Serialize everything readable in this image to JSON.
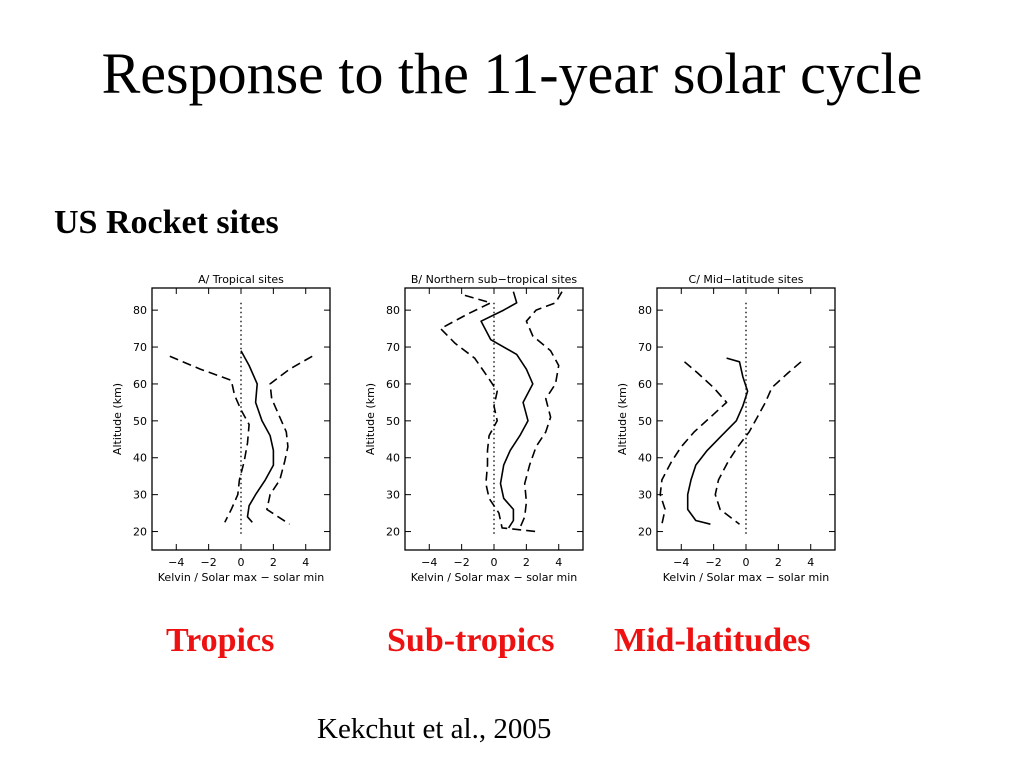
{
  "slide": {
    "title": "Response to the 11-year solar cycle",
    "subtitle": "US Rocket sites",
    "region_labels": [
      "Tropics",
      "Sub-tropics",
      "Mid-latitudes"
    ],
    "citation": "Kekchut et al., 2005",
    "label_color": "#ee1111"
  },
  "chart_data": [
    {
      "type": "line",
      "title": "A/ Tropical sites",
      "xlabel": "Kelvin / Solar max − solar min",
      "ylabel": "Altitude (km)",
      "xlim": [
        -5.5,
        5.5
      ],
      "ylim": [
        15,
        86
      ],
      "xticks": [
        -4,
        -2,
        0,
        2,
        4
      ],
      "yticks": [
        20,
        30,
        40,
        50,
        60,
        70,
        80
      ],
      "reference_line_x": 0,
      "series": [
        {
          "style": "solid",
          "points": [
            [
              0.0,
              69
            ],
            [
              0.5,
              65
            ],
            [
              1.0,
              60
            ],
            [
              0.9,
              55
            ],
            [
              1.3,
              50
            ],
            [
              1.8,
              46
            ],
            [
              2.0,
              42
            ],
            [
              2.0,
              38
            ],
            [
              1.5,
              34
            ],
            [
              0.9,
              30
            ],
            [
              0.5,
              27
            ],
            [
              0.4,
              24
            ],
            [
              0.7,
              22.5
            ]
          ]
        },
        {
          "style": "dashed",
          "points": [
            [
              -4.4,
              67.5
            ],
            [
              -2.5,
              64
            ],
            [
              -0.6,
              61
            ],
            [
              -0.4,
              57
            ],
            [
              0.0,
              53
            ],
            [
              0.5,
              49
            ],
            [
              0.4,
              44
            ],
            [
              0.2,
              39
            ],
            [
              -0.1,
              34
            ],
            [
              -0.2,
              30
            ],
            [
              -0.6,
              26
            ],
            [
              -1.0,
              22.5
            ]
          ]
        },
        {
          "style": "dashed",
          "points": [
            [
              4.4,
              67.5
            ],
            [
              3.0,
              64
            ],
            [
              1.8,
              60
            ],
            [
              1.9,
              56
            ],
            [
              2.4,
              51
            ],
            [
              2.8,
              47
            ],
            [
              2.9,
              43
            ],
            [
              2.7,
              39
            ],
            [
              2.4,
              34
            ],
            [
              1.8,
              30
            ],
            [
              1.6,
              26
            ],
            [
              3.0,
              22
            ]
          ]
        }
      ]
    },
    {
      "type": "line",
      "title": "B/ Northern sub−tropical sites",
      "xlabel": "Kelvin / Solar max − solar min",
      "ylabel": "Altitude (km)",
      "xlim": [
        -5.5,
        5.5
      ],
      "ylim": [
        15,
        86
      ],
      "xticks": [
        -4,
        -2,
        0,
        2,
        4
      ],
      "yticks": [
        20,
        30,
        40,
        50,
        60,
        70,
        80
      ],
      "reference_line_x": 0,
      "series": [
        {
          "style": "solid",
          "points": [
            [
              1.2,
              85
            ],
            [
              1.4,
              82
            ],
            [
              0.6,
              80
            ],
            [
              -0.8,
              77
            ],
            [
              -0.2,
              72
            ],
            [
              1.4,
              68
            ],
            [
              2.0,
              64
            ],
            [
              2.4,
              60
            ],
            [
              1.8,
              55
            ],
            [
              2.1,
              50
            ],
            [
              1.6,
              46
            ],
            [
              1.0,
              42
            ],
            [
              0.6,
              38
            ],
            [
              0.4,
              33
            ],
            [
              0.6,
              29
            ],
            [
              1.2,
              26
            ],
            [
              1.2,
              23
            ],
            [
              0.9,
              21
            ]
          ]
        },
        {
          "style": "dashed",
          "points": [
            [
              -1.8,
              84
            ],
            [
              -0.2,
              82
            ],
            [
              -1.6,
              79
            ],
            [
              -3.3,
              75
            ],
            [
              -2.4,
              71
            ],
            [
              -1.2,
              67
            ],
            [
              -0.4,
              62
            ],
            [
              0.2,
              58
            ],
            [
              0.0,
              54
            ],
            [
              0.2,
              50
            ],
            [
              -0.3,
              46
            ],
            [
              -0.4,
              42
            ],
            [
              -0.4,
              38
            ],
            [
              -0.5,
              33
            ],
            [
              -0.3,
              29
            ],
            [
              0.3,
              25
            ],
            [
              0.5,
              21
            ],
            [
              2.6,
              20
            ]
          ]
        },
        {
          "style": "dashed",
          "points": [
            [
              4.2,
              85
            ],
            [
              3.8,
              82
            ],
            [
              2.6,
              80
            ],
            [
              2.0,
              77
            ],
            [
              2.4,
              73
            ],
            [
              3.5,
              69
            ],
            [
              4.0,
              65
            ],
            [
              3.8,
              60
            ],
            [
              3.2,
              56
            ],
            [
              3.5,
              51
            ],
            [
              3.2,
              47
            ],
            [
              2.6,
              43
            ],
            [
              2.2,
              38
            ],
            [
              1.9,
              33
            ],
            [
              2.0,
              28
            ],
            [
              1.9,
              24
            ],
            [
              1.6,
              21
            ]
          ]
        }
      ]
    },
    {
      "type": "line",
      "title": "C/ Mid−latitude sites",
      "xlabel": "Kelvin / Solar max − solar min",
      "ylabel": "Altitude (km)",
      "xlim": [
        -5.5,
        5.5
      ],
      "ylim": [
        15,
        86
      ],
      "xticks": [
        -4,
        -2,
        0,
        2,
        4
      ],
      "yticks": [
        20,
        30,
        40,
        50,
        60,
        70,
        80
      ],
      "reference_line_x": 0,
      "series": [
        {
          "style": "solid",
          "points": [
            [
              -1.2,
              67
            ],
            [
              -0.4,
              66
            ],
            [
              -0.2,
              62
            ],
            [
              0.1,
              58
            ],
            [
              -0.2,
              54
            ],
            [
              -0.6,
              50
            ],
            [
              -1.5,
              46
            ],
            [
              -2.4,
              42
            ],
            [
              -3.1,
              38
            ],
            [
              -3.4,
              34
            ],
            [
              -3.6,
              30
            ],
            [
              -3.6,
              26
            ],
            [
              -3.1,
              23
            ],
            [
              -2.2,
              22
            ]
          ]
        },
        {
          "style": "dashed",
          "points": [
            [
              -3.8,
              66
            ],
            [
              -3.0,
              63
            ],
            [
              -2.0,
              59
            ],
            [
              -1.2,
              55
            ],
            [
              -2.2,
              51
            ],
            [
              -3.2,
              47
            ],
            [
              -4.0,
              43
            ],
            [
              -4.6,
              39
            ],
            [
              -5.2,
              34
            ],
            [
              -5.3,
              30
            ],
            [
              -5.0,
              26
            ],
            [
              -5.2,
              22
            ]
          ]
        },
        {
          "style": "dashed",
          "points": [
            [
              3.4,
              66
            ],
            [
              2.6,
              63
            ],
            [
              1.6,
              59
            ],
            [
              1.2,
              55
            ],
            [
              0.7,
              51
            ],
            [
              0.2,
              47
            ],
            [
              -0.5,
              43
            ],
            [
              -1.1,
              39
            ],
            [
              -1.7,
              34
            ],
            [
              -1.9,
              30
            ],
            [
              -1.6,
              26
            ],
            [
              -0.4,
              22
            ]
          ]
        }
      ]
    }
  ]
}
